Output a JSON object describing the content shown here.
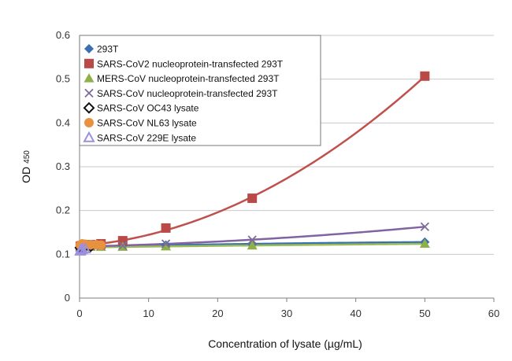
{
  "chart_data": {
    "type": "scatter",
    "title": "",
    "xlabel": "Concentration of lysate (µg/mL)",
    "ylabel": "OD",
    "ylabel_subscript": "450",
    "xlim": [
      0,
      60
    ],
    "ylim": [
      0,
      0.6
    ],
    "x_ticks": [
      0,
      10,
      20,
      30,
      40,
      50,
      60
    ],
    "y_ticks": [
      0,
      0.1,
      0.2,
      0.3,
      0.4,
      0.5,
      0.6
    ],
    "x_tick_labels": [
      "0",
      "10",
      "20",
      "30",
      "40",
      "50",
      "60"
    ],
    "y_tick_labels": [
      "0",
      "0.1",
      "0.2",
      "0.3",
      "0.4",
      "0.5",
      "0.6"
    ],
    "grid": "horizontal",
    "legend_position": "top-left",
    "series": [
      {
        "name": "293T",
        "marker": "diamond",
        "color": "#3A6FB0",
        "x": [
          0.1,
          0.2,
          0.4,
          0.8,
          1.6,
          3.1,
          6.25,
          12.5,
          25,
          50
        ],
        "y": [
          0.116,
          0.117,
          0.117,
          0.118,
          0.118,
          0.119,
          0.12,
          0.121,
          0.123,
          0.128
        ],
        "trendline": true,
        "trend_color": "#3A6FB0"
      },
      {
        "name": "SARS-CoV2 nucleoprotein-transfected 293T",
        "marker": "square",
        "color": "#B94A48",
        "x": [
          0.1,
          0.2,
          0.4,
          0.8,
          1.6,
          3.1,
          6.25,
          12.5,
          25,
          50
        ],
        "y": [
          0.118,
          0.119,
          0.12,
          0.121,
          0.122,
          0.124,
          0.131,
          0.16,
          0.228,
          0.507
        ],
        "trendline": true,
        "trend_color": "#C0504D"
      },
      {
        "name": "MERS-CoV nucleoprotein-transfected 293T",
        "marker": "triangle",
        "color": "#8DB048",
        "x": [
          0.1,
          0.2,
          0.4,
          0.8,
          1.6,
          3.1,
          6.25,
          12.5,
          25,
          50
        ],
        "y": [
          0.115,
          0.115,
          0.116,
          0.116,
          0.117,
          0.117,
          0.117,
          0.118,
          0.12,
          0.124
        ],
        "trendline": true,
        "trend_color": "#9BBB59"
      },
      {
        "name": "SARS-CoV nucleoprotein-transfected 293T",
        "marker": "x",
        "color": "#7F6A99",
        "x": [
          0.1,
          0.2,
          0.4,
          0.8,
          1.6,
          3.1,
          6.25,
          12.5,
          25,
          50
        ],
        "y": [
          0.117,
          0.117,
          0.118,
          0.118,
          0.119,
          0.12,
          0.12,
          0.124,
          0.133,
          0.163
        ],
        "trendline": true,
        "trend_color": "#8064A2"
      },
      {
        "name": "SARS-CoV OC43 lysate",
        "marker": "diamond-open",
        "color": "#111111",
        "x": [
          0.1,
          0.2,
          0.4,
          0.8,
          1.6
        ],
        "y": [
          0.115,
          0.116,
          0.117,
          0.118,
          0.118
        ],
        "trendline": false
      },
      {
        "name": "SARS-CoV NL63 lysate",
        "marker": "circle",
        "color": "#E8913E",
        "x": [
          0.1,
          0.4,
          0.8,
          1.6,
          2.4,
          3.1
        ],
        "y": [
          0.121,
          0.124,
          0.123,
          0.122,
          0.122,
          0.121
        ],
        "trendline": false
      },
      {
        "name": "SARS-CoV 229E lysate",
        "marker": "triangle-open",
        "color": "#9A8FE0",
        "x": [
          0.1,
          0.2,
          0.4,
          0.8
        ],
        "y": [
          0.108,
          0.111,
          0.112,
          0.113
        ],
        "trendline": false
      }
    ]
  }
}
